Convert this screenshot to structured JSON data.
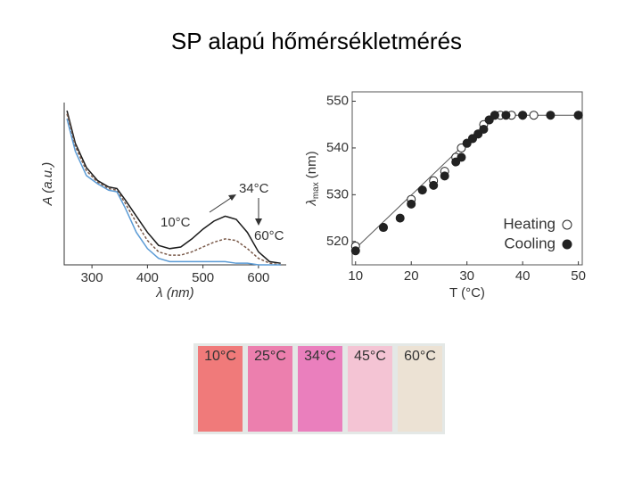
{
  "title": "SP alapú hőmérsékletmérés",
  "chart_data": [
    {
      "type": "line",
      "xlabel": "λ (nm)",
      "ylabel": "A (a.u.)",
      "xlim": [
        250,
        650
      ],
      "xticks": [
        300,
        400,
        500,
        600
      ],
      "ylim": [
        0,
        1
      ],
      "x": [
        255,
        270,
        290,
        310,
        330,
        345,
        360,
        380,
        400,
        420,
        440,
        460,
        480,
        500,
        520,
        540,
        560,
        580,
        600,
        620,
        640
      ],
      "series": [
        {
          "color": "#1a1a1a",
          "dash": false,
          "values": [
            0.95,
            0.75,
            0.6,
            0.52,
            0.48,
            0.47,
            0.4,
            0.3,
            0.2,
            0.12,
            0.1,
            0.11,
            0.16,
            0.22,
            0.27,
            0.3,
            0.28,
            0.2,
            0.08,
            0.02,
            0.01
          ]
        },
        {
          "color": "#7a5a4a",
          "dash": true,
          "values": [
            0.93,
            0.73,
            0.58,
            0.51,
            0.47,
            0.46,
            0.38,
            0.26,
            0.15,
            0.08,
            0.06,
            0.06,
            0.08,
            0.11,
            0.14,
            0.16,
            0.15,
            0.1,
            0.04,
            0.01,
            0.0
          ]
        },
        {
          "color": "#5b9bd5",
          "dash": false,
          "values": [
            0.9,
            0.7,
            0.55,
            0.5,
            0.46,
            0.45,
            0.35,
            0.2,
            0.1,
            0.04,
            0.02,
            0.02,
            0.02,
            0.02,
            0.02,
            0.02,
            0.01,
            0.01,
            0.0,
            0.0,
            0.0
          ]
        }
      ],
      "annotations": [
        "34°C",
        "10°C",
        "60°C"
      ]
    },
    {
      "type": "scatter",
      "xlabel": "T (°C)",
      "ylabel_symbol": "λ",
      "ylabel_subscript": "max",
      "ylabel_unit": "(nm)",
      "xlim": [
        9.4,
        50.7
      ],
      "xticks": [
        10,
        20,
        30,
        40,
        50
      ],
      "ylim": [
        515,
        552
      ],
      "yticks": [
        520,
        530,
        540,
        550
      ],
      "trend": {
        "x": [
          10,
          35,
          50
        ],
        "y": [
          518.5,
          547,
          547
        ]
      },
      "legend": "lower right",
      "series": [
        {
          "name": "Heating",
          "color": "#ffffff",
          "x": [
            10,
            15,
            20,
            22,
            24,
            26,
            28,
            29,
            30,
            31,
            32,
            33,
            34,
            35,
            36,
            38,
            40,
            42,
            50
          ],
          "values": [
            519,
            523,
            529,
            531,
            533,
            535,
            538,
            540,
            541,
            542,
            543,
            545,
            546,
            547,
            547,
            547,
            547,
            547,
            547
          ]
        },
        {
          "name": "Cooling",
          "color": "#222222",
          "x": [
            10,
            15,
            18,
            20,
            22,
            24,
            26,
            28,
            29,
            30,
            31,
            32,
            33,
            34,
            35,
            37,
            40,
            45,
            50
          ],
          "values": [
            518,
            523,
            525,
            528,
            531,
            532,
            534,
            537,
            538,
            541,
            542,
            543,
            544,
            546,
            547,
            547,
            547,
            547,
            547
          ]
        }
      ]
    }
  ],
  "photo": {
    "labels": [
      "10°C",
      "25°C",
      "34°C",
      "45°C",
      "60°C"
    ]
  }
}
